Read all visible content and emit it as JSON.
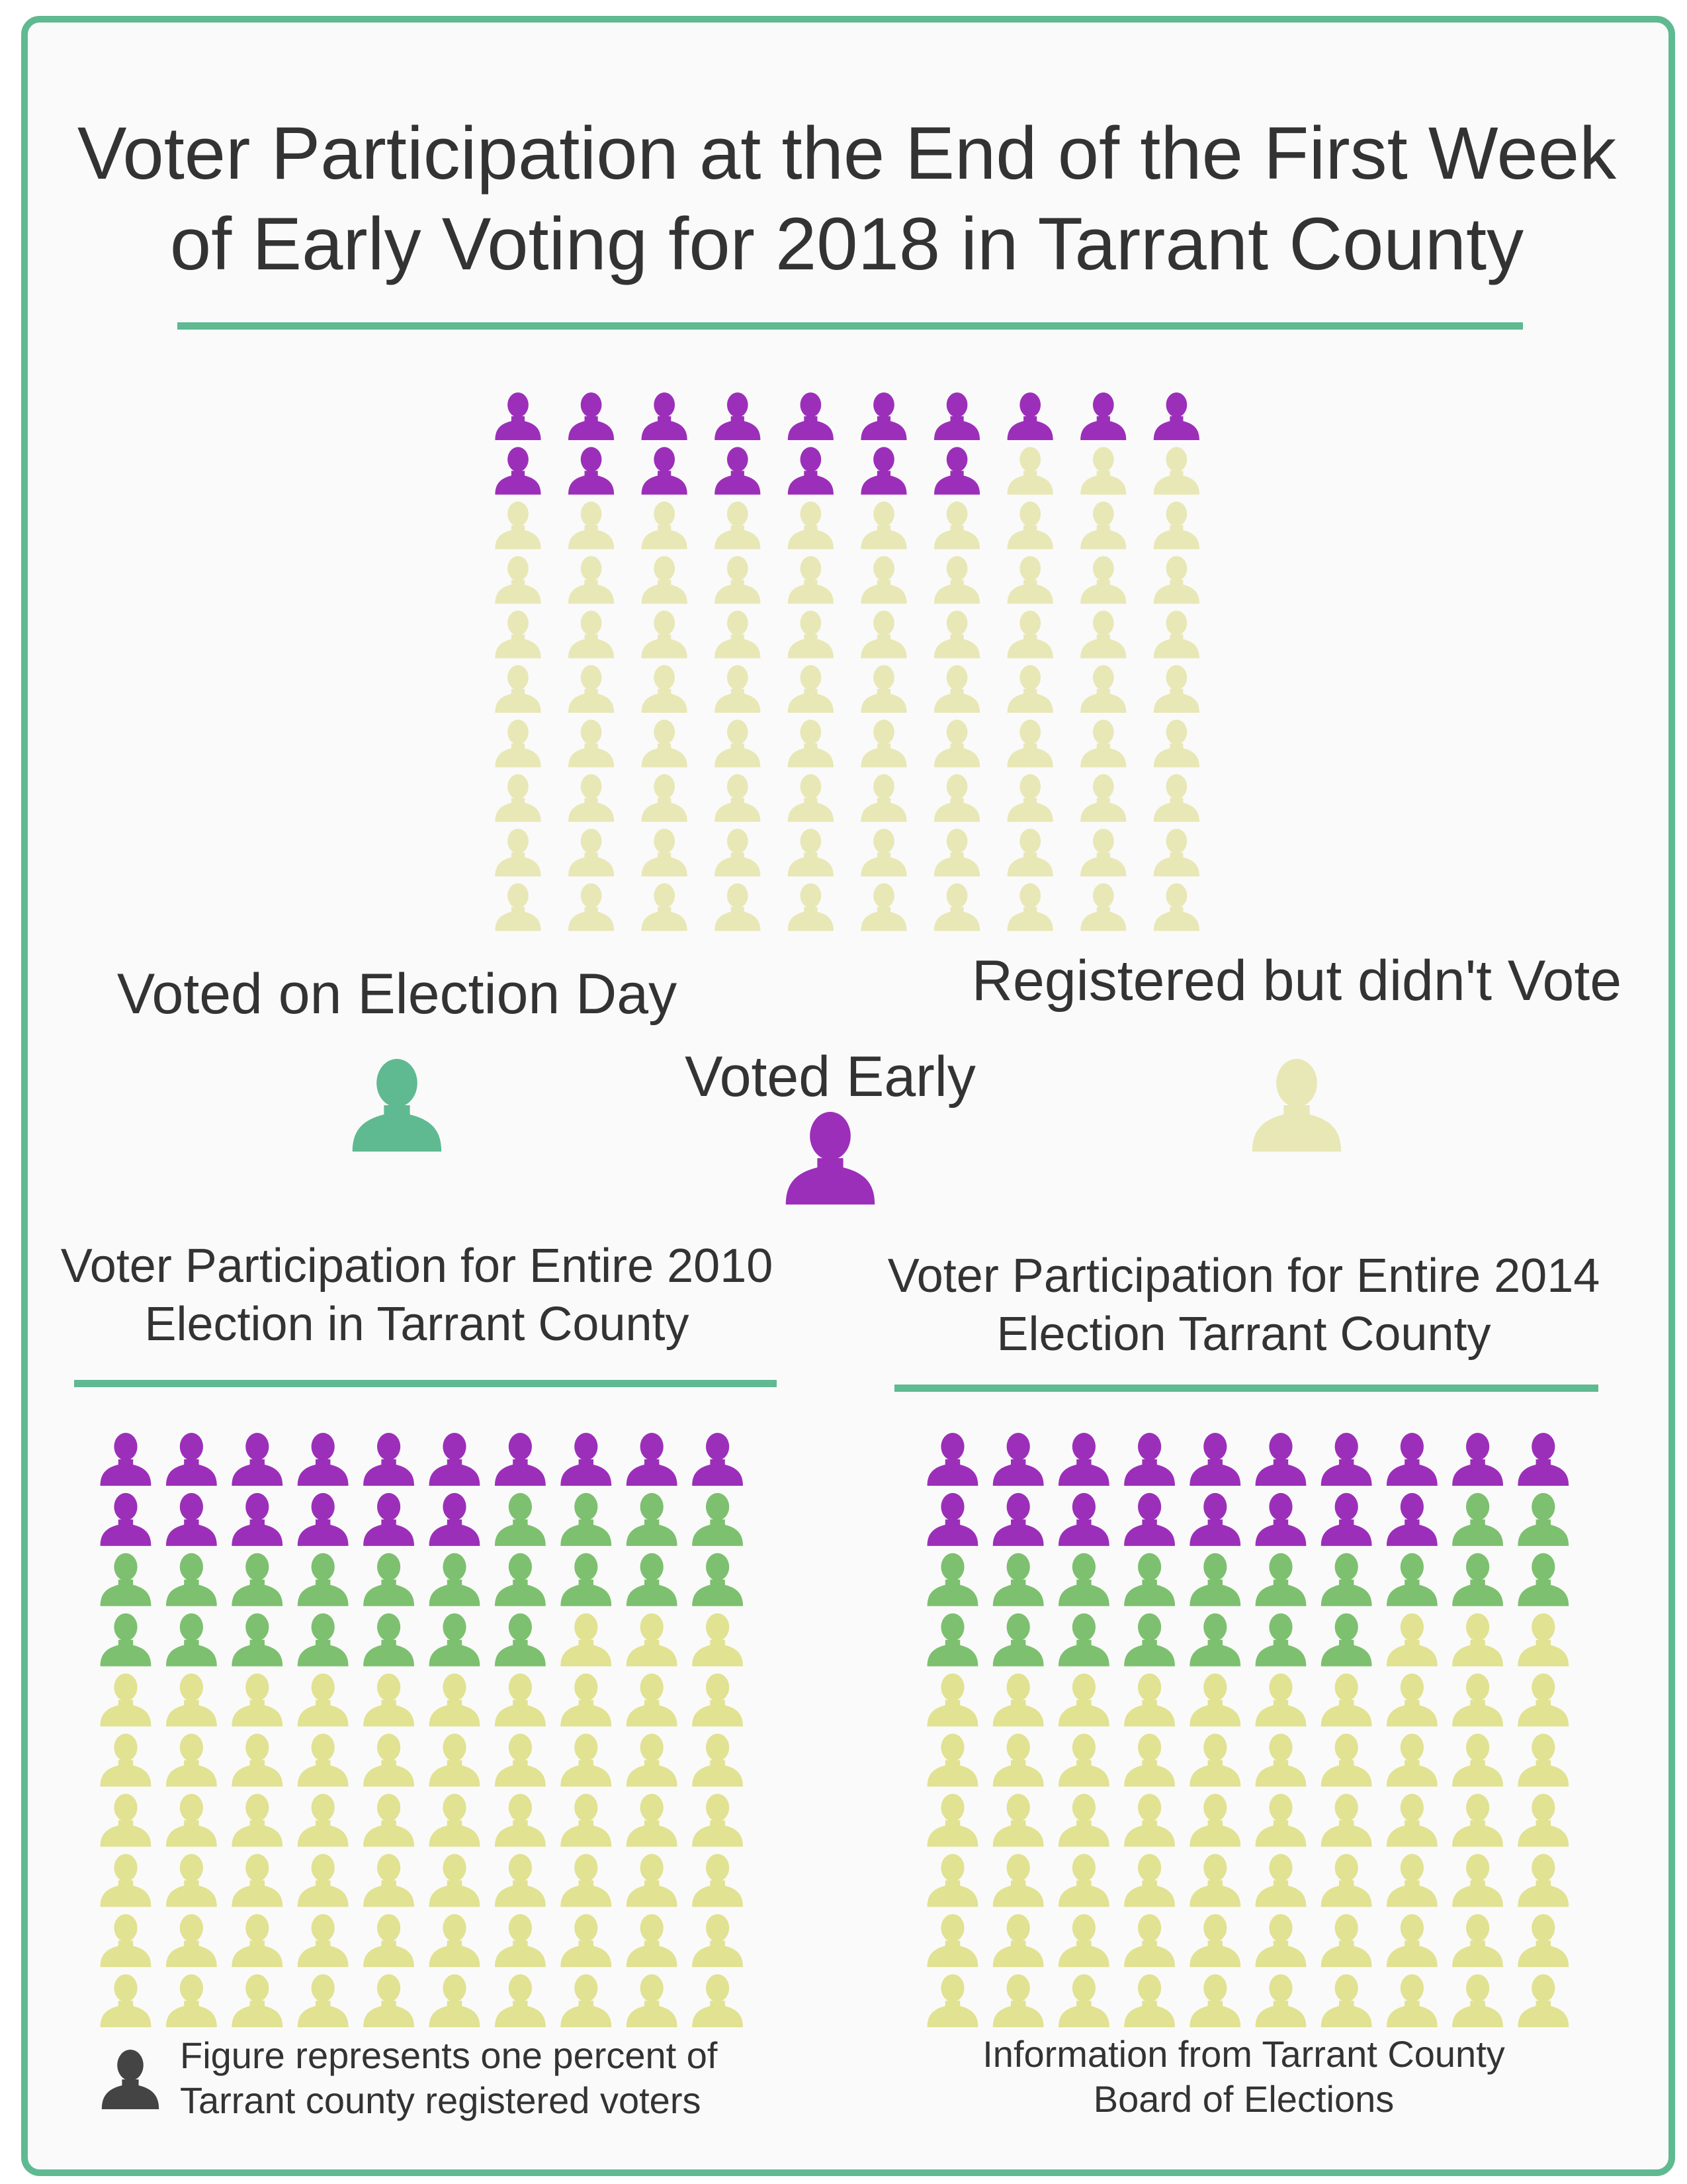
{
  "title": {
    "line1": "Voter Participation at the End of the First Week",
    "line2": "of Early Voting for 2018 in Tarrant County"
  },
  "legend": {
    "election_day": "Voted on Election Day",
    "registered_not_voted": "Registered but didn't Vote",
    "voted_early": "Voted Early"
  },
  "colors": {
    "voted_early": "#9c2fb9",
    "voted_election_day": "#7dc06f",
    "registered_not_voted": "#e8e7b6",
    "registered_not_voted_2010_2014": "#e1e292",
    "legend_election_day": "#5fb991",
    "accent_rule": "#5fb991",
    "note_icon": "#444444"
  },
  "note": {
    "line1": "Figure represents one percent of",
    "line2": "Tarrant county registered voters"
  },
  "source": {
    "line1": "Information from Tarrant County",
    "line2": "Board of Elections"
  },
  "chart_data": [
    {
      "type": "pictogram",
      "title": "Voter Participation at the End of the First Week of Early Voting for 2018 in Tarrant County",
      "unit": "percent of registered voters (one figure each)",
      "grid": [
        10,
        10
      ],
      "categories": [
        "Voted Early",
        "Voted on Election Day",
        "Registered but didn't Vote"
      ],
      "values": [
        17,
        0,
        83
      ]
    },
    {
      "type": "pictogram",
      "title_line1": "Voter Participation for Entire 2010",
      "title_line2": "Election in Tarrant County",
      "unit": "percent of registered voters (one figure each)",
      "grid": [
        10,
        10
      ],
      "categories": [
        "Voted Early",
        "Voted on Election Day",
        "Registered but didn't Vote"
      ],
      "values": [
        16,
        21,
        63
      ]
    },
    {
      "type": "pictogram",
      "title_line1": "Voter Participation for Entire 2014",
      "title_line2": "Election Tarrant County",
      "unit": "percent of registered voters (one figure each)",
      "grid": [
        10,
        10
      ],
      "categories": [
        "Voted Early",
        "Voted on Election Day",
        "Registered but didn't Vote"
      ],
      "values": [
        18,
        19,
        63
      ]
    }
  ]
}
